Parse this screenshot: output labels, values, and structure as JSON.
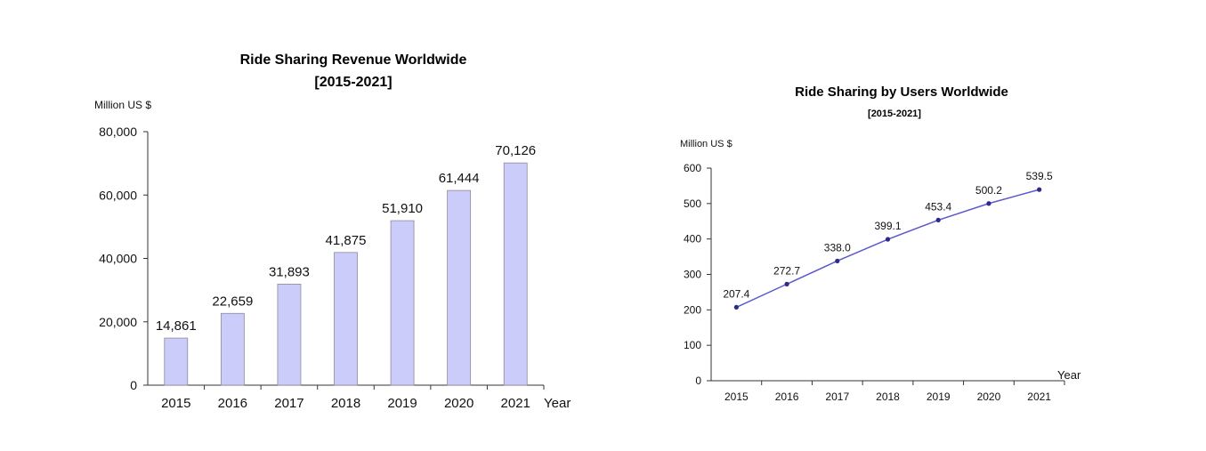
{
  "chart_data": [
    {
      "type": "bar",
      "title": "Ride Sharing Revenue Worldwide",
      "subtitle": "[2015-2021]",
      "ylabel": "Million US $",
      "xlabel": "Year",
      "categories": [
        "2015",
        "2016",
        "2017",
        "2018",
        "2019",
        "2020",
        "2021"
      ],
      "values": [
        14861,
        22659,
        31893,
        41875,
        51910,
        61444,
        70126
      ],
      "data_labels": [
        "14,861",
        "22,659",
        "31,893",
        "41,875",
        "51,910",
        "61,444",
        "70,126"
      ],
      "ylim": [
        0,
        80000
      ],
      "yticks": [
        0,
        20000,
        40000,
        60000,
        80000
      ],
      "ytick_labels": [
        "0",
        "20,000",
        "40,000",
        "60,000",
        "80,000"
      ],
      "grid": false,
      "bar_color": "#ccccfa"
    },
    {
      "type": "line",
      "title": "Ride Sharing by Users Worldwide",
      "subtitle": "[2015-2021]",
      "ylabel": "Million US $",
      "xlabel": "Year",
      "categories": [
        "2015",
        "2016",
        "2017",
        "2018",
        "2019",
        "2020",
        "2021"
      ],
      "values": [
        207.4,
        272.7,
        338.0,
        399.1,
        453.4,
        500.2,
        539.5
      ],
      "data_labels": [
        "207.4",
        "272.7",
        "338.0",
        "399.1",
        "453.4",
        "500.2",
        "539.5"
      ],
      "ylim": [
        0,
        600
      ],
      "yticks": [
        0,
        100,
        200,
        300,
        400,
        500,
        600
      ],
      "ytick_labels": [
        "0",
        "100",
        "200",
        "300",
        "400",
        "500",
        "600"
      ],
      "grid": false,
      "line_color": "#5a5acd"
    }
  ]
}
